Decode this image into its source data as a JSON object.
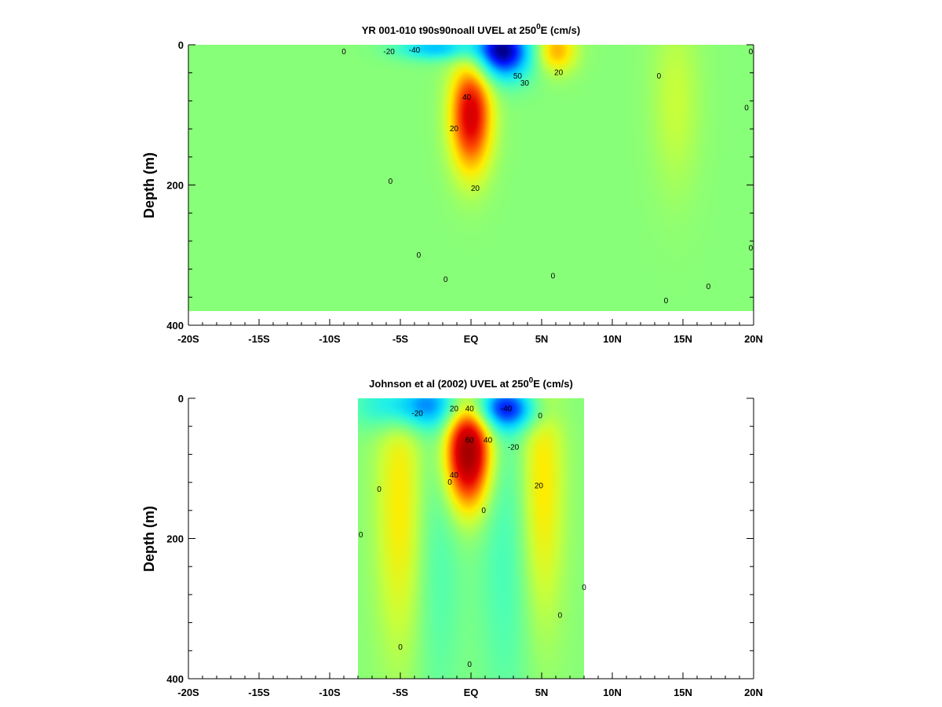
{
  "chart_data": [
    {
      "type": "heatmap",
      "title_main": "YR 001-010 t90s90noall UVEL at 250",
      "title_sup": "0",
      "title_tail": "E (cm/s)",
      "xlabel": "",
      "ylabel": "Depth (m)",
      "xlim": [
        -20,
        20
      ],
      "ylim": [
        0,
        400
      ],
      "y_inverted": true,
      "grid": false,
      "x_ticks": [
        {
          "v": -20,
          "label": "-20S"
        },
        {
          "v": -15,
          "label": "-15S"
        },
        {
          "v": -10,
          "label": "-10S"
        },
        {
          "v": -5,
          "label": "-5S"
        },
        {
          "v": 0,
          "label": "EQ"
        },
        {
          "v": 5,
          "label": "5N"
        },
        {
          "v": 10,
          "label": "10N"
        },
        {
          "v": 15,
          "label": "15N"
        },
        {
          "v": 20,
          "label": "20N"
        }
      ],
      "y_ticks": [
        {
          "v": 0,
          "label": "0"
        },
        {
          "v": 200,
          "label": "200"
        },
        {
          "v": 400,
          "label": "400"
        }
      ],
      "data_extent": {
        "x": [
          -20,
          20
        ],
        "depth": [
          0,
          380
        ]
      },
      "features": [
        {
          "kind": "eastward_jet",
          "x": 0,
          "depth": 100,
          "sx": 1.0,
          "sy": 55,
          "value": 60
        },
        {
          "kind": "westward_current",
          "x": 2.2,
          "depth": 10,
          "sx": 1.5,
          "sy": 28,
          "value": -60
        },
        {
          "kind": "westward_current",
          "x": -2.5,
          "depth": 5,
          "sx": 2.0,
          "sy": 12,
          "value": -30
        },
        {
          "kind": "eastward_current",
          "x": 6.0,
          "depth": 8,
          "sx": 1.0,
          "sy": 22,
          "value": 30
        },
        {
          "kind": "eastward_current",
          "x": 14.5,
          "depth": 80,
          "sx": 1.2,
          "sy": 90,
          "value": 10
        }
      ],
      "contour_labels": [
        {
          "x": -9,
          "depth": 10,
          "text": "0"
        },
        {
          "x": -4,
          "depth": 8,
          "text": "-40"
        },
        {
          "x": -5.8,
          "depth": 10,
          "text": "-20"
        },
        {
          "x": -0.3,
          "depth": 75,
          "text": "40"
        },
        {
          "x": -1.2,
          "depth": 120,
          "text": "20"
        },
        {
          "x": 0.3,
          "depth": 205,
          "text": "20"
        },
        {
          "x": 3.3,
          "depth": 45,
          "text": "50"
        },
        {
          "x": 3.8,
          "depth": 55,
          "text": "30"
        },
        {
          "x": 6.2,
          "depth": 40,
          "text": "20"
        },
        {
          "x": -5.7,
          "depth": 195,
          "text": "0"
        },
        {
          "x": -3.7,
          "depth": 300,
          "text": "0"
        },
        {
          "x": -1.8,
          "depth": 335,
          "text": "0"
        },
        {
          "x": 5.8,
          "depth": 330,
          "text": "0"
        },
        {
          "x": 13.3,
          "depth": 45,
          "text": "0"
        },
        {
          "x": 13.8,
          "depth": 365,
          "text": "0"
        },
        {
          "x": 16.8,
          "depth": 345,
          "text": "0"
        },
        {
          "x": 19.8,
          "depth": 290,
          "text": "0"
        },
        {
          "x": 19.8,
          "depth": 10,
          "text": "0"
        },
        {
          "x": 19.5,
          "depth": 90,
          "text": "0"
        }
      ]
    },
    {
      "type": "heatmap",
      "title_main": "Johnson et al (2002) UVEL at 250",
      "title_sup": "0",
      "title_tail": "E (cm/s)",
      "xlabel": "",
      "ylabel": "Depth (m)",
      "xlim": [
        -20,
        20
      ],
      "ylim": [
        0,
        400
      ],
      "y_inverted": true,
      "grid": false,
      "x_ticks": [
        {
          "v": -20,
          "label": "-20S"
        },
        {
          "v": -15,
          "label": "-15S"
        },
        {
          "v": -10,
          "label": "-10S"
        },
        {
          "v": -5,
          "label": "-5S"
        },
        {
          "v": 0,
          "label": "EQ"
        },
        {
          "v": 5,
          "label": "5N"
        },
        {
          "v": 10,
          "label": "10N"
        },
        {
          "v": 15,
          "label": "15N"
        },
        {
          "v": 20,
          "label": "20N"
        }
      ],
      "y_ticks": [
        {
          "v": 0,
          "label": "0"
        },
        {
          "v": 200,
          "label": "200"
        },
        {
          "v": 400,
          "label": "400"
        }
      ],
      "data_extent": {
        "x": [
          -8,
          8
        ],
        "depth": [
          0,
          400
        ]
      },
      "features": [
        {
          "kind": "eastward_jet",
          "x": -0.2,
          "depth": 75,
          "sx": 1.1,
          "sy": 55,
          "value": 80
        },
        {
          "kind": "westward_current",
          "x": -4.0,
          "depth": 10,
          "sx": 2.5,
          "sy": 25,
          "value": -40
        },
        {
          "kind": "westward_current",
          "x": 2.5,
          "depth": 15,
          "sx": 1.8,
          "sy": 22,
          "value": -45
        },
        {
          "kind": "eastward_current",
          "x": -5.0,
          "depth": 150,
          "sx": 1.2,
          "sy": 150,
          "value": 20
        },
        {
          "kind": "eastward_current",
          "x": 5.0,
          "depth": 120,
          "sx": 1.1,
          "sy": 140,
          "value": 22
        },
        {
          "kind": "westward_current",
          "x": 2.5,
          "depth": 220,
          "sx": 1.4,
          "sy": 180,
          "value": -12
        },
        {
          "kind": "westward_current",
          "x": -2.3,
          "depth": 230,
          "sx": 1.2,
          "sy": 170,
          "value": -10
        }
      ],
      "contour_labels": [
        {
          "x": -3.8,
          "depth": 22,
          "text": "-20"
        },
        {
          "x": -1.2,
          "depth": 15,
          "text": "20"
        },
        {
          "x": -0.1,
          "depth": 15,
          "text": "40"
        },
        {
          "x": 2.5,
          "depth": 15,
          "text": "-40"
        },
        {
          "x": -0.1,
          "depth": 60,
          "text": "60"
        },
        {
          "x": 1.2,
          "depth": 60,
          "text": "40"
        },
        {
          "x": 3.0,
          "depth": 70,
          "text": "-20"
        },
        {
          "x": -1.2,
          "depth": 110,
          "text": "40"
        },
        {
          "x": -1.5,
          "depth": 120,
          "text": "0"
        },
        {
          "x": 4.8,
          "depth": 125,
          "text": "20"
        },
        {
          "x": -6.5,
          "depth": 130,
          "text": "0"
        },
        {
          "x": 0.9,
          "depth": 160,
          "text": "0"
        },
        {
          "x": 4.9,
          "depth": 25,
          "text": "0"
        },
        {
          "x": -7.8,
          "depth": 195,
          "text": "0"
        },
        {
          "x": 8.0,
          "depth": 270,
          "text": "0"
        },
        {
          "x": 6.3,
          "depth": 310,
          "text": "0"
        },
        {
          "x": -5.0,
          "depth": 355,
          "text": "0"
        },
        {
          "x": -0.1,
          "depth": 380,
          "text": "0"
        }
      ]
    }
  ],
  "colormap": [
    {
      "v": -60,
      "color": "#00008c"
    },
    {
      "v": -50,
      "color": "#0014ff"
    },
    {
      "v": -40,
      "color": "#006eff"
    },
    {
      "v": -30,
      "color": "#00c8ff"
    },
    {
      "v": -20,
      "color": "#20f0e8"
    },
    {
      "v": -10,
      "color": "#50ffb0"
    },
    {
      "v": 0,
      "color": "#88ff78"
    },
    {
      "v": 10,
      "color": "#c8ff3a"
    },
    {
      "v": 20,
      "color": "#ffec00"
    },
    {
      "v": 30,
      "color": "#ffa800"
    },
    {
      "v": 40,
      "color": "#ff5a00"
    },
    {
      "v": 55,
      "color": "#e60000"
    },
    {
      "v": 70,
      "color": "#b40000"
    },
    {
      "v": 85,
      "color": "#8c0000"
    }
  ]
}
